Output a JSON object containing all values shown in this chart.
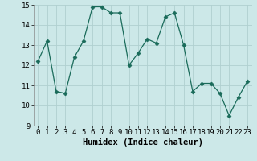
{
  "x": [
    0,
    1,
    2,
    3,
    4,
    5,
    6,
    7,
    8,
    9,
    10,
    11,
    12,
    13,
    14,
    15,
    16,
    17,
    18,
    19,
    20,
    21,
    22,
    23
  ],
  "y": [
    12.2,
    13.2,
    10.7,
    10.6,
    12.4,
    13.2,
    14.9,
    14.9,
    14.6,
    14.6,
    12.0,
    12.6,
    13.3,
    13.1,
    14.4,
    14.6,
    13.0,
    10.7,
    11.1,
    11.1,
    10.6,
    9.5,
    10.4,
    11.2
  ],
  "xlabel": "Humidex (Indice chaleur)",
  "ylim": [
    9,
    15
  ],
  "xlim": [
    -0.5,
    23.5
  ],
  "yticks": [
    9,
    10,
    11,
    12,
    13,
    14,
    15
  ],
  "xticks": [
    0,
    1,
    2,
    3,
    4,
    5,
    6,
    7,
    8,
    9,
    10,
    11,
    12,
    13,
    14,
    15,
    16,
    17,
    18,
    19,
    20,
    21,
    22,
    23
  ],
  "line_color": "#1a6b5a",
  "marker": "D",
  "marker_size": 2.5,
  "background_color": "#cce8e8",
  "grid_color": "#b0d0d0",
  "tick_fontsize": 6.5,
  "xlabel_fontsize": 7.5
}
